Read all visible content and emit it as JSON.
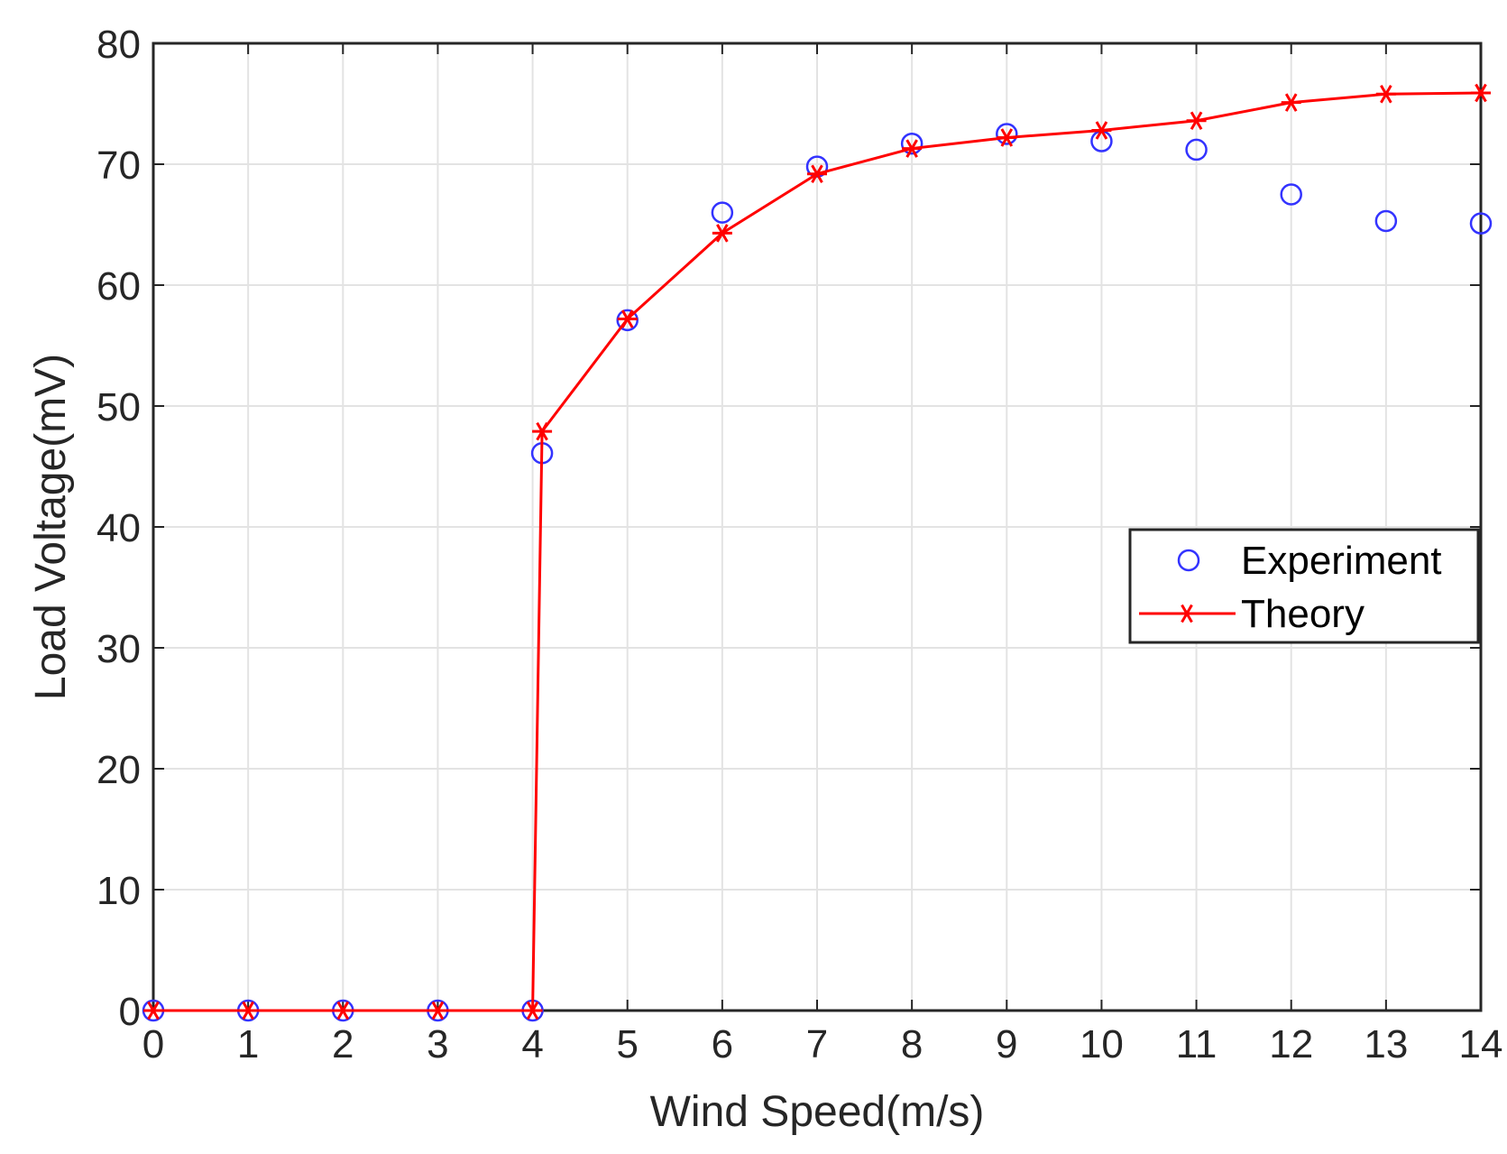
{
  "chart_data": {
    "type": "line",
    "title": "",
    "xlabel": "Wind Speed(m/s)",
    "ylabel": "Load Voltage(mV)",
    "xlim": [
      0,
      14
    ],
    "ylim": [
      0,
      80
    ],
    "xticks": [
      0,
      1,
      2,
      3,
      4,
      5,
      6,
      7,
      8,
      9,
      10,
      11,
      12,
      13,
      14
    ],
    "yticks": [
      0,
      10,
      20,
      30,
      40,
      50,
      60,
      70,
      80
    ],
    "grid": true,
    "legend_position": "right",
    "series": [
      {
        "name": "Experiment",
        "style": "markers",
        "marker": "circle",
        "color": "#3333ff",
        "x": [
          0,
          1,
          2,
          3,
          4,
          4.1,
          5,
          6,
          7,
          8,
          9,
          10,
          11,
          12,
          13,
          14
        ],
        "y": [
          0,
          0,
          0,
          0,
          0,
          46.1,
          57.1,
          66.0,
          69.8,
          71.7,
          72.5,
          71.9,
          71.2,
          67.5,
          65.3,
          65.1
        ]
      },
      {
        "name": "Theory",
        "style": "line-markers",
        "marker": "asterisk",
        "color": "#ff0000",
        "x": [
          0,
          1,
          2,
          3,
          4,
          4.1,
          5,
          6,
          7,
          8,
          9,
          10,
          11,
          12,
          13,
          14
        ],
        "y": [
          0,
          0,
          0,
          0,
          0,
          47.9,
          57.2,
          64.3,
          69.2,
          71.3,
          72.2,
          72.8,
          73.6,
          75.1,
          75.8,
          75.9
        ]
      }
    ]
  }
}
